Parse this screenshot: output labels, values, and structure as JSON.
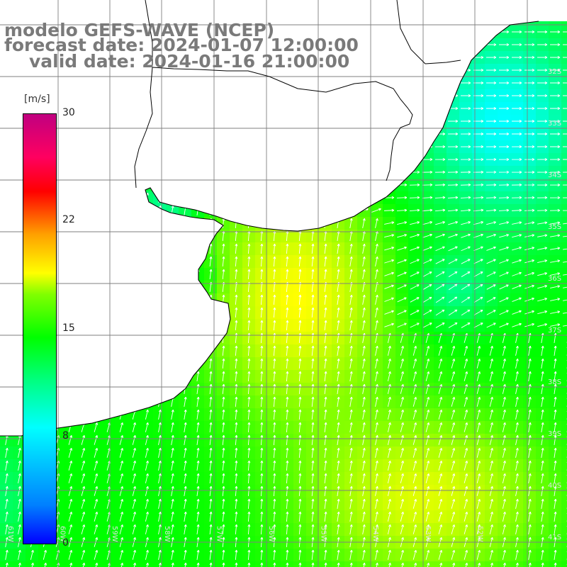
{
  "title": {
    "line1": "modelo GEFS-WAVE (NCEP)",
    "line2": "forecast date: 2024-01-07 12:00:00",
    "line3": "valid date: 2024-01-16 21:00:00"
  },
  "colorbar": {
    "units": "[m/s]",
    "ticks": [
      "30",
      "22",
      "15",
      "8",
      "0"
    ],
    "tick_values": [
      30,
      22,
      15,
      8,
      0
    ],
    "colors": [
      "#0000ff",
      "#0080ff",
      "#00ffff",
      "#00ff80",
      "#00ff00",
      "#80ff00",
      "#ffff00",
      "#ffa000",
      "#ff0000",
      "#c00080"
    ]
  },
  "lat_labels": [
    "32S",
    "33S",
    "34S",
    "35S",
    "36S",
    "37S",
    "38S",
    "39S",
    "40S",
    "41S"
  ],
  "lon_labels": [
    "61W",
    "60W",
    "59W",
    "58W",
    "57W",
    "56W",
    "55W",
    "54W",
    "53W",
    "52W"
  ],
  "colors": {
    "land": "#ffffff",
    "grid": "#7f7f7f",
    "coast": "#000000",
    "arrows": "#ffffff",
    "title": "#7a7a7a"
  }
}
